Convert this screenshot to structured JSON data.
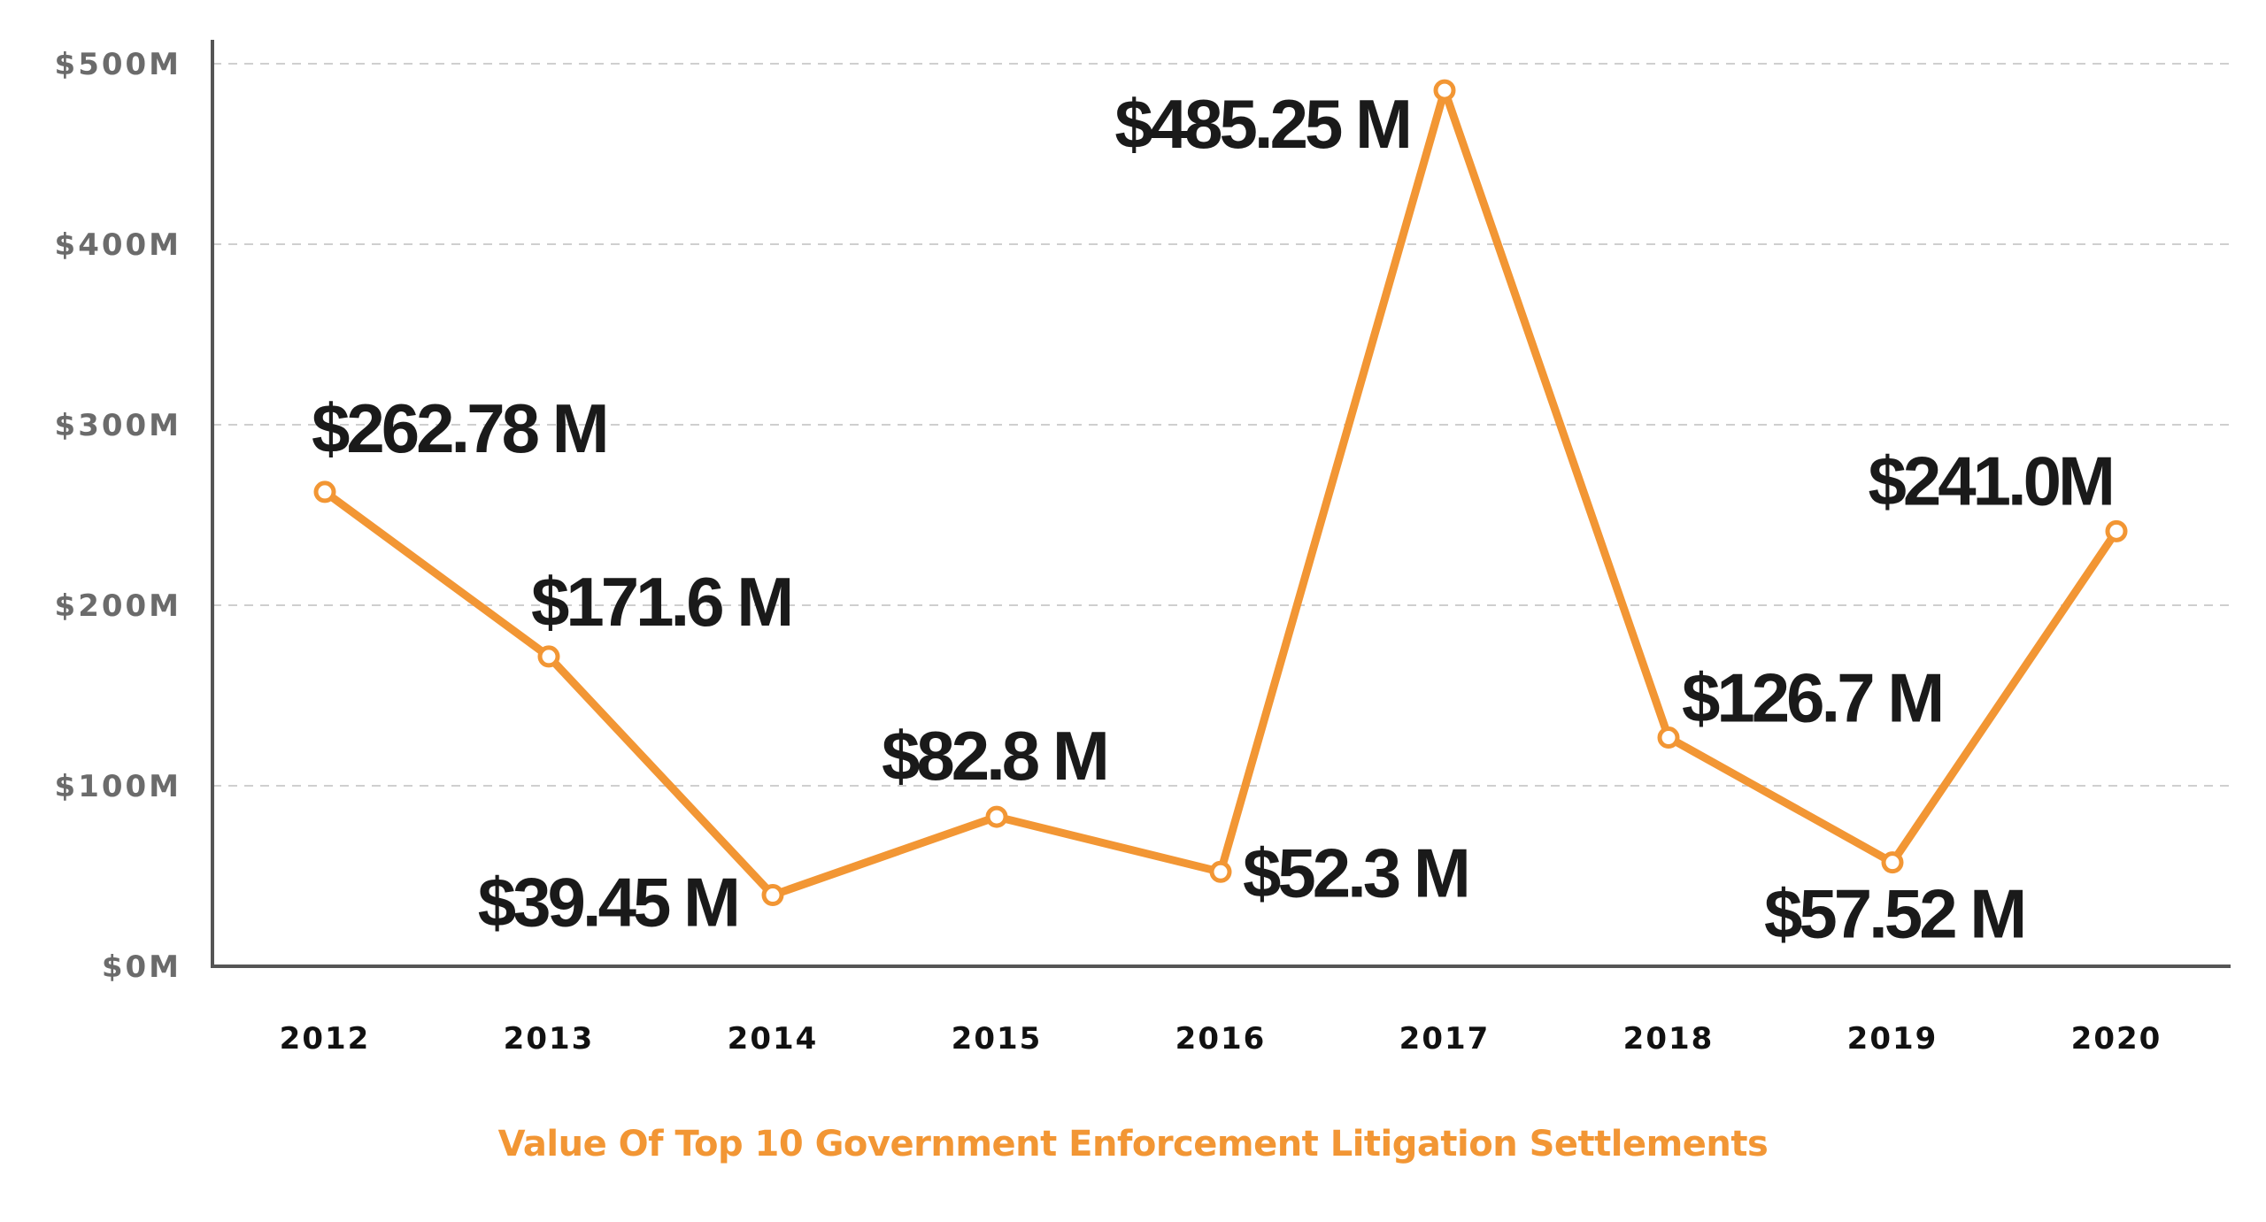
{
  "chart_data": {
    "type": "line",
    "title": "Value Of Top 10 Government Enforcement Litigation Settlements",
    "xlabel": "",
    "ylabel": "",
    "categories": [
      "2012",
      "2013",
      "2014",
      "2015",
      "2016",
      "2017",
      "2018",
      "2019",
      "2020"
    ],
    "series": [
      {
        "values": [
          262.78,
          171.6,
          39.45,
          82.8,
          52.3,
          485.25,
          126.7,
          57.52,
          241.0
        ],
        "labels": [
          "$262.78 M",
          "$171.6 M",
          "$39.45 M",
          "$82.8 M",
          "$52.3 M",
          "$485.25 M",
          "$126.7 M",
          "$57.52 M",
          "$241.0M"
        ],
        "color": "#f29634"
      }
    ],
    "ylim": [
      0,
      500
    ],
    "yticks": [
      0,
      100,
      200,
      300,
      400,
      500
    ],
    "ytick_labels": [
      "$0M",
      "$100M",
      "$200M",
      "$300M",
      "$400M",
      "$500M"
    ],
    "grid": true,
    "legend": "none",
    "colors": {
      "line": "#f29634",
      "title": "#f29634",
      "axis": "#555555",
      "grid": "#cfcfcf",
      "label": "#1a1a1a"
    }
  }
}
